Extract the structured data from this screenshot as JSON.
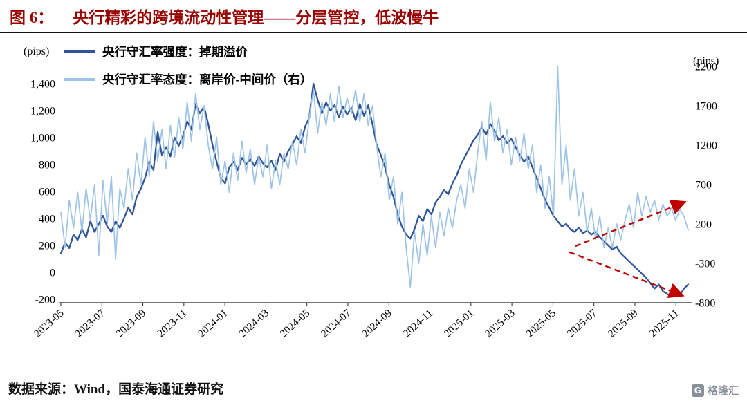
{
  "header": {
    "figure_label": "图 6：",
    "title": "央行精彩的跨境流动性管理——分层管控，低波慢牛"
  },
  "axes": {
    "left_unit": "(pips)",
    "right_unit": "(pips)"
  },
  "legend": {
    "items": [
      {
        "label": "央行守汇率强度：掉期溢价",
        "color": "#2F5597"
      },
      {
        "label": "央行守汇率态度：离岸价-中间价（右）",
        "color": "#9DC3E6"
      }
    ]
  },
  "footer": {
    "source_text": "数据来源：Wind，国泰海通证券研究"
  },
  "watermark": {
    "icon_letter": "G",
    "text": "格隆汇"
  },
  "chart_data": {
    "type": "line",
    "title": "央行精彩的跨境流动性管理——分层管控，低波慢牛",
    "x_tick_labels": [
      "2023-05",
      "2023-07",
      "2023-09",
      "2023-11",
      "2024-01",
      "2024-03",
      "2024-05",
      "2024-07",
      "2024-09",
      "2024-11",
      "2025-01",
      "2025-03",
      "2025-05",
      "2025-07",
      "2025-09",
      "2025-11"
    ],
    "x_tick_interval_months": 2,
    "x_total_months": 30.6,
    "grid": false,
    "legend_position": "top-left",
    "left_axis": {
      "unit": "(pips)",
      "min": -200,
      "max": 1400,
      "tick_values": [
        1400,
        1200,
        1000,
        800,
        600,
        400,
        200,
        0,
        -200
      ],
      "tick_labels": [
        "1,400",
        "1,200",
        "1,000",
        "800",
        "600",
        "400",
        "200",
        "0",
        "-200"
      ]
    },
    "right_axis": {
      "unit": "(pips)",
      "min": -800,
      "max": 2200,
      "tick_values": [
        2200,
        1700,
        1200,
        700,
        200,
        -300,
        -800
      ],
      "tick_labels": [
        "2200",
        "1700",
        "1200",
        "700",
        "200",
        "-300",
        "-800"
      ]
    },
    "series": [
      {
        "name": "央行守汇率强度：掉期溢价",
        "axis": "left",
        "color": "#2F5597",
        "stroke_width": 2.3,
        "values": [
          140,
          220,
          180,
          280,
          240,
          320,
          260,
          380,
          300,
          360,
          420,
          340,
          300,
          380,
          330,
          400,
          480,
          430,
          560,
          620,
          700,
          820,
          760,
          1040,
          870,
          930,
          860,
          1000,
          940,
          1010,
          1120,
          1060,
          1250,
          1180,
          1230,
          1100,
          950,
          820,
          700,
          660,
          780,
          820,
          760,
          850,
          800,
          840,
          790,
          860,
          810,
          780,
          830,
          760,
          880,
          820,
          900,
          950,
          1010,
          960,
          1080,
          1150,
          1400,
          1280,
          1180,
          1260,
          1200,
          1240,
          1150,
          1230,
          1170,
          1220,
          1130,
          1250,
          1160,
          1240,
          1100,
          950,
          870,
          780,
          650,
          560,
          430,
          340,
          280,
          250,
          320,
          420,
          380,
          470,
          430,
          520,
          560,
          610,
          580,
          660,
          720,
          800,
          860,
          920,
          980,
          1020,
          1080,
          1020,
          1100,
          1050,
          980,
          1010,
          960,
          990,
          930,
          870,
          820,
          860,
          780,
          700,
          620,
          540,
          480,
          420,
          380,
          340,
          360,
          320,
          300,
          330,
          290,
          310,
          280,
          300,
          260,
          230,
          200,
          170,
          190,
          140,
          110,
          80,
          50,
          20,
          -10,
          -40,
          -80,
          -120,
          -90,
          -140,
          -160,
          -180,
          -150,
          -170,
          -120,
          -90
        ]
      },
      {
        "name": "央行守汇率态度：离岸价-中间价（右）",
        "axis": "right",
        "color": "#9DC3E6",
        "stroke_width": 1.7,
        "values": [
          350,
          -100,
          500,
          150,
          600,
          100,
          650,
          250,
          700,
          -200,
          750,
          200,
          800,
          -250,
          650,
          400,
          900,
          500,
          1100,
          700,
          1300,
          800,
          1500,
          1000,
          1400,
          900,
          1450,
          1050,
          1550,
          1150,
          1750,
          1250,
          1850,
          1400,
          1700,
          1200,
          900,
          1300,
          700,
          1000,
          600,
          1100,
          750,
          1250,
          850,
          1150,
          700,
          1050,
          800,
          1200,
          650,
          1000,
          700,
          1100,
          900,
          1250,
          950,
          1400,
          1100,
          1550,
          1900,
          1350,
          1750,
          1450,
          1850,
          1500,
          1950,
          1550,
          1800,
          1600,
          1900,
          1500,
          1850,
          1450,
          1700,
          1200,
          800,
          1100,
          500,
          800,
          200,
          600,
          -100,
          -600,
          100,
          -300,
          200,
          -200,
          300,
          -100,
          350,
          50,
          400,
          150,
          500,
          700,
          400,
          900,
          600,
          1100,
          1500,
          1000,
          1750,
          1250,
          1550,
          1100,
          1400,
          950,
          1300,
          1000,
          1350,
          900,
          1200,
          600,
          950,
          400,
          800,
          300,
          2200,
          700,
          1200,
          500,
          900,
          300,
          600,
          100,
          400,
          0,
          300,
          -100,
          150,
          -100,
          200,
          0,
          250,
          450,
          150,
          600,
          300,
          550,
          350,
          500,
          250,
          450,
          300,
          400,
          250,
          380,
          300,
          120
        ]
      }
    ],
    "annotations": [
      {
        "type": "arrow",
        "axis": "left",
        "color": "#C00000",
        "dashed": true,
        "from_t": 25.1,
        "from_value": 195,
        "to_t": 30.4,
        "to_value": 520
      },
      {
        "type": "arrow",
        "axis": "left",
        "color": "#C00000",
        "dashed": true,
        "from_t": 24.8,
        "from_value": 150,
        "to_t": 30.3,
        "to_value": -170
      }
    ]
  }
}
